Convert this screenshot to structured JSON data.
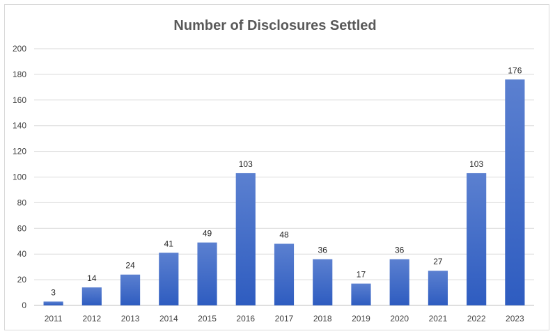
{
  "chart_data": {
    "type": "bar",
    "title": "Number of Disclosures Settled",
    "xlabel": "",
    "ylabel": "",
    "categories": [
      "2011",
      "2012",
      "2013",
      "2014",
      "2015",
      "2016",
      "2017",
      "2018",
      "2019",
      "2020",
      "2021",
      "2022",
      "2023"
    ],
    "values": [
      3,
      14,
      24,
      41,
      49,
      103,
      48,
      36,
      17,
      36,
      27,
      103,
      176
    ],
    "ylim": [
      0,
      200
    ],
    "yticks": [
      0,
      20,
      40,
      60,
      80,
      100,
      120,
      140,
      160,
      180,
      200
    ],
    "grid": true,
    "legend": "none",
    "colors": {
      "bar_top": "#5b80d0",
      "bar_bottom": "#2e5cc0",
      "grid": "#d9d9d9",
      "axis": "#bfbfbf"
    }
  }
}
